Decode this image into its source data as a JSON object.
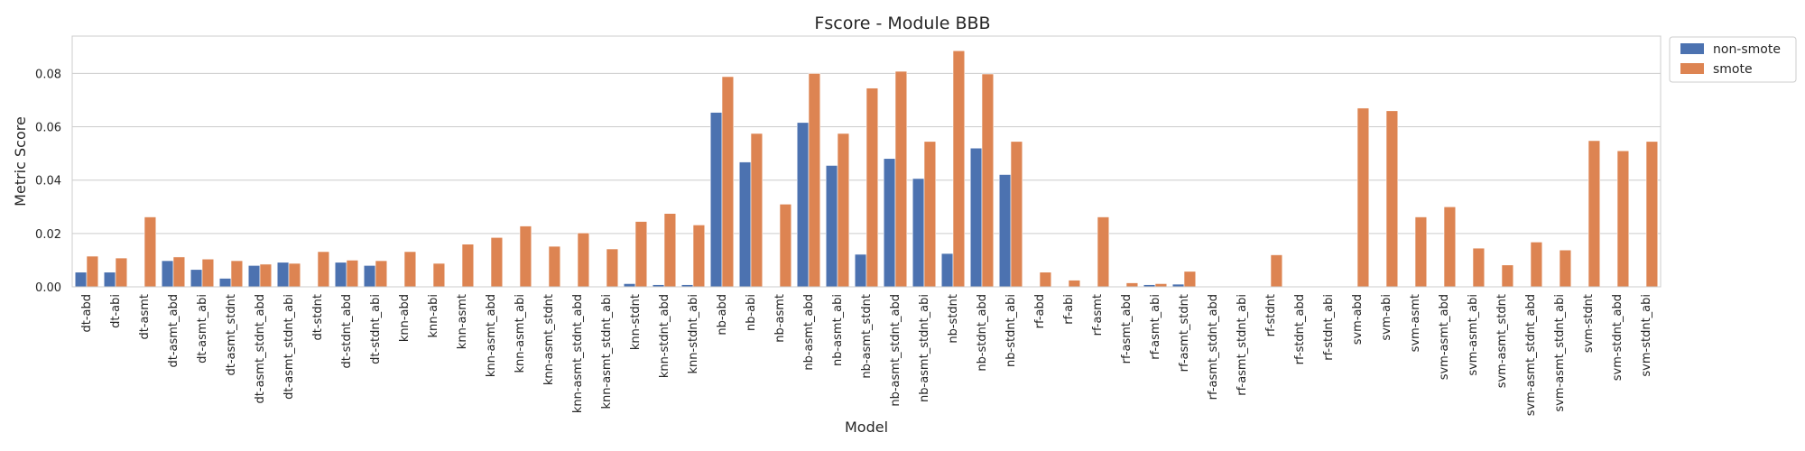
{
  "chart_data": {
    "type": "bar",
    "title": "Fscore - Module BBB",
    "xlabel": "Model",
    "ylabel": "Metric Score",
    "ylim": [
      0,
      0.094
    ],
    "yticks": [
      "0.00",
      "0.02",
      "0.04",
      "0.06",
      "0.08"
    ],
    "grid": true,
    "legend_position": "outside-top-right",
    "categories": [
      "dt-abd",
      "dt-abi",
      "dt-asmt",
      "dt-asmt_abd",
      "dt-asmt_abi",
      "dt-asmt_stdnt",
      "dt-asmt_stdnt_abd",
      "dt-asmt_stdnt_abi",
      "dt-stdnt",
      "dt-stdnt_abd",
      "dt-stdnt_abi",
      "knn-abd",
      "knn-abi",
      "knn-asmt",
      "knn-asmt_abd",
      "knn-asmt_abi",
      "knn-asmt_stdnt",
      "knn-asmt_stdnt_abd",
      "knn-asmt_stdnt_abi",
      "knn-stdnt",
      "knn-stdnt_abd",
      "knn-stdnt_abi",
      "nb-abd",
      "nb-abi",
      "nb-asmt",
      "nb-asmt_abd",
      "nb-asmt_abi",
      "nb-asmt_stdnt",
      "nb-asmt_stdnt_abd",
      "nb-asmt_stdnt_abi",
      "nb-stdnt",
      "nb-stdnt_abd",
      "nb-stdnt_abi",
      "rf-abd",
      "rf-abi",
      "rf-asmt",
      "rf-asmt_abd",
      "rf-asmt_abi",
      "rf-asmt_stdnt",
      "rf-asmt_stdnt_abd",
      "rf-asmt_stdnt_abi",
      "rf-stdnt",
      "rf-stdnt_abd",
      "rf-stdnt_abi",
      "svm-abd",
      "svm-abi",
      "svm-asmt",
      "svm-asmt_abd",
      "svm-asmt_abi",
      "svm-asmt_stdnt",
      "svm-asmt_stdnt_abd",
      "svm-asmt_stdnt_abi",
      "svm-stdnt",
      "svm-stdnt_abd",
      "svm-stdnt_abi"
    ],
    "series": [
      {
        "name": "non-smote",
        "color": "#4c72b0",
        "values": [
          0.0055,
          0.0055,
          0,
          0.0098,
          0.0065,
          0.0032,
          0.008,
          0.0092,
          0,
          0.0092,
          0.008,
          0,
          0,
          0,
          0,
          0,
          0,
          0,
          0,
          0.0012,
          0.0008,
          0.0008,
          0.0654,
          0.0468,
          0,
          0.0616,
          0.0455,
          0.0122,
          0.0481,
          0.0406,
          0.0125,
          0.052,
          0.0421,
          0,
          0,
          0,
          0,
          0.0008,
          0.001,
          0,
          0,
          0,
          0,
          0,
          0,
          0,
          0,
          0,
          0,
          0,
          0,
          0,
          0,
          0,
          0
        ]
      },
      {
        "name": "smote",
        "color": "#dd8452",
        "values": [
          0.0115,
          0.0108,
          0.0262,
          0.0112,
          0.0104,
          0.0098,
          0.0085,
          0.0088,
          0.0132,
          0.01,
          0.0098,
          0.0132,
          0.0088,
          0.016,
          0.0185,
          0.0228,
          0.0152,
          0.0202,
          0.0142,
          0.0245,
          0.0275,
          0.0232,
          0.0788,
          0.0575,
          0.031,
          0.08,
          0.0575,
          0.0745,
          0.0808,
          0.0545,
          0.0885,
          0.0798,
          0.0545,
          0.0055,
          0.0025,
          0.0262,
          0.0015,
          0.0012,
          0.0058,
          0,
          0,
          0.012,
          0,
          0,
          0.067,
          0.066,
          0.0262,
          0.03,
          0.0145,
          0.0082,
          0.0168,
          0.0138,
          0.0548,
          0.051,
          0.0545
        ]
      }
    ]
  }
}
